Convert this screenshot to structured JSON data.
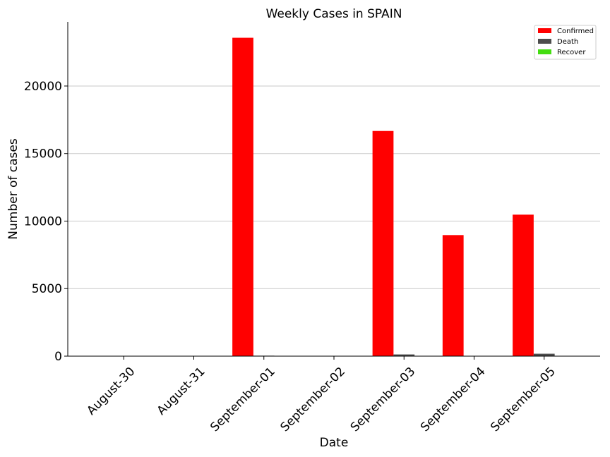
{
  "chart_data": {
    "type": "bar",
    "title": "Weekly Cases in SPAIN",
    "xlabel": "Date",
    "ylabel": "Number of cases",
    "categories": [
      "August-30",
      "August-31",
      "September-01",
      "September-02",
      "September-03",
      "September-04",
      "September-05"
    ],
    "series": [
      {
        "name": "Confirmed",
        "color": "#ff0000",
        "values": [
          0,
          0,
          23572,
          0,
          16671,
          8964,
          10476
        ]
      },
      {
        "name": "Death",
        "color": "#4d4d4d",
        "values": [
          0,
          0,
          34,
          0,
          127,
          0,
          179
        ]
      },
      {
        "name": "Recover",
        "color": "#44dd11",
        "values": [
          0,
          0,
          0,
          0,
          0,
          0,
          0
        ]
      }
    ],
    "yticks": [
      0,
      5000,
      10000,
      15000,
      20000
    ],
    "ylim": [
      0,
      24750
    ],
    "grid": "y",
    "legend": "top-right"
  }
}
